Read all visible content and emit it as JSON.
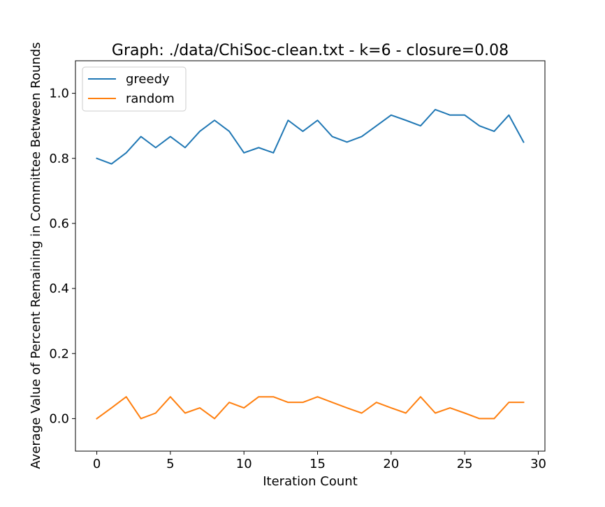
{
  "chart_data": {
    "type": "line",
    "title": "Graph: ./data/ChiSoc-clean.txt - k=6 - closure=0.08",
    "xlabel": "Iteration Count",
    "ylabel": "Average Value of Percent Remaining in Committee Between Rounds",
    "xlim": [
      -1.45,
      30.45
    ],
    "ylim": [
      -0.1,
      1.1
    ],
    "xticks": [
      0,
      5,
      10,
      15,
      20,
      25,
      30
    ],
    "yticks": [
      0.0,
      0.2,
      0.4,
      0.6,
      0.8,
      1.0
    ],
    "xtick_labels": [
      "0",
      "5",
      "10",
      "15",
      "20",
      "25",
      "30"
    ],
    "ytick_labels": [
      "0.0",
      "0.2",
      "0.4",
      "0.6",
      "0.8",
      "1.0"
    ],
    "grid": false,
    "legend_position": "top-left",
    "x": [
      0,
      1,
      2,
      3,
      4,
      5,
      6,
      7,
      8,
      9,
      10,
      11,
      12,
      13,
      14,
      15,
      16,
      17,
      18,
      19,
      20,
      21,
      22,
      23,
      24,
      25,
      26,
      27,
      28,
      29
    ],
    "series": [
      {
        "name": "greedy",
        "color": "#1f77b4",
        "values": [
          0.8,
          0.783,
          0.817,
          0.867,
          0.833,
          0.867,
          0.833,
          0.883,
          0.917,
          0.883,
          0.817,
          0.833,
          0.817,
          0.917,
          0.883,
          0.917,
          0.867,
          0.85,
          0.867,
          0.9,
          0.933,
          0.917,
          0.9,
          0.95,
          0.933,
          0.933,
          0.9,
          0.883,
          0.933,
          0.85
        ]
      },
      {
        "name": "random",
        "color": "#ff7f0e",
        "values": [
          0.0,
          0.033,
          0.067,
          0.0,
          0.017,
          0.067,
          0.017,
          0.033,
          0.0,
          0.05,
          0.033,
          0.067,
          0.067,
          0.05,
          0.05,
          0.067,
          0.05,
          0.033,
          0.017,
          0.05,
          0.033,
          0.017,
          0.067,
          0.017,
          0.033,
          0.017,
          0.0,
          0.0,
          0.05,
          0.05
        ]
      }
    ]
  }
}
